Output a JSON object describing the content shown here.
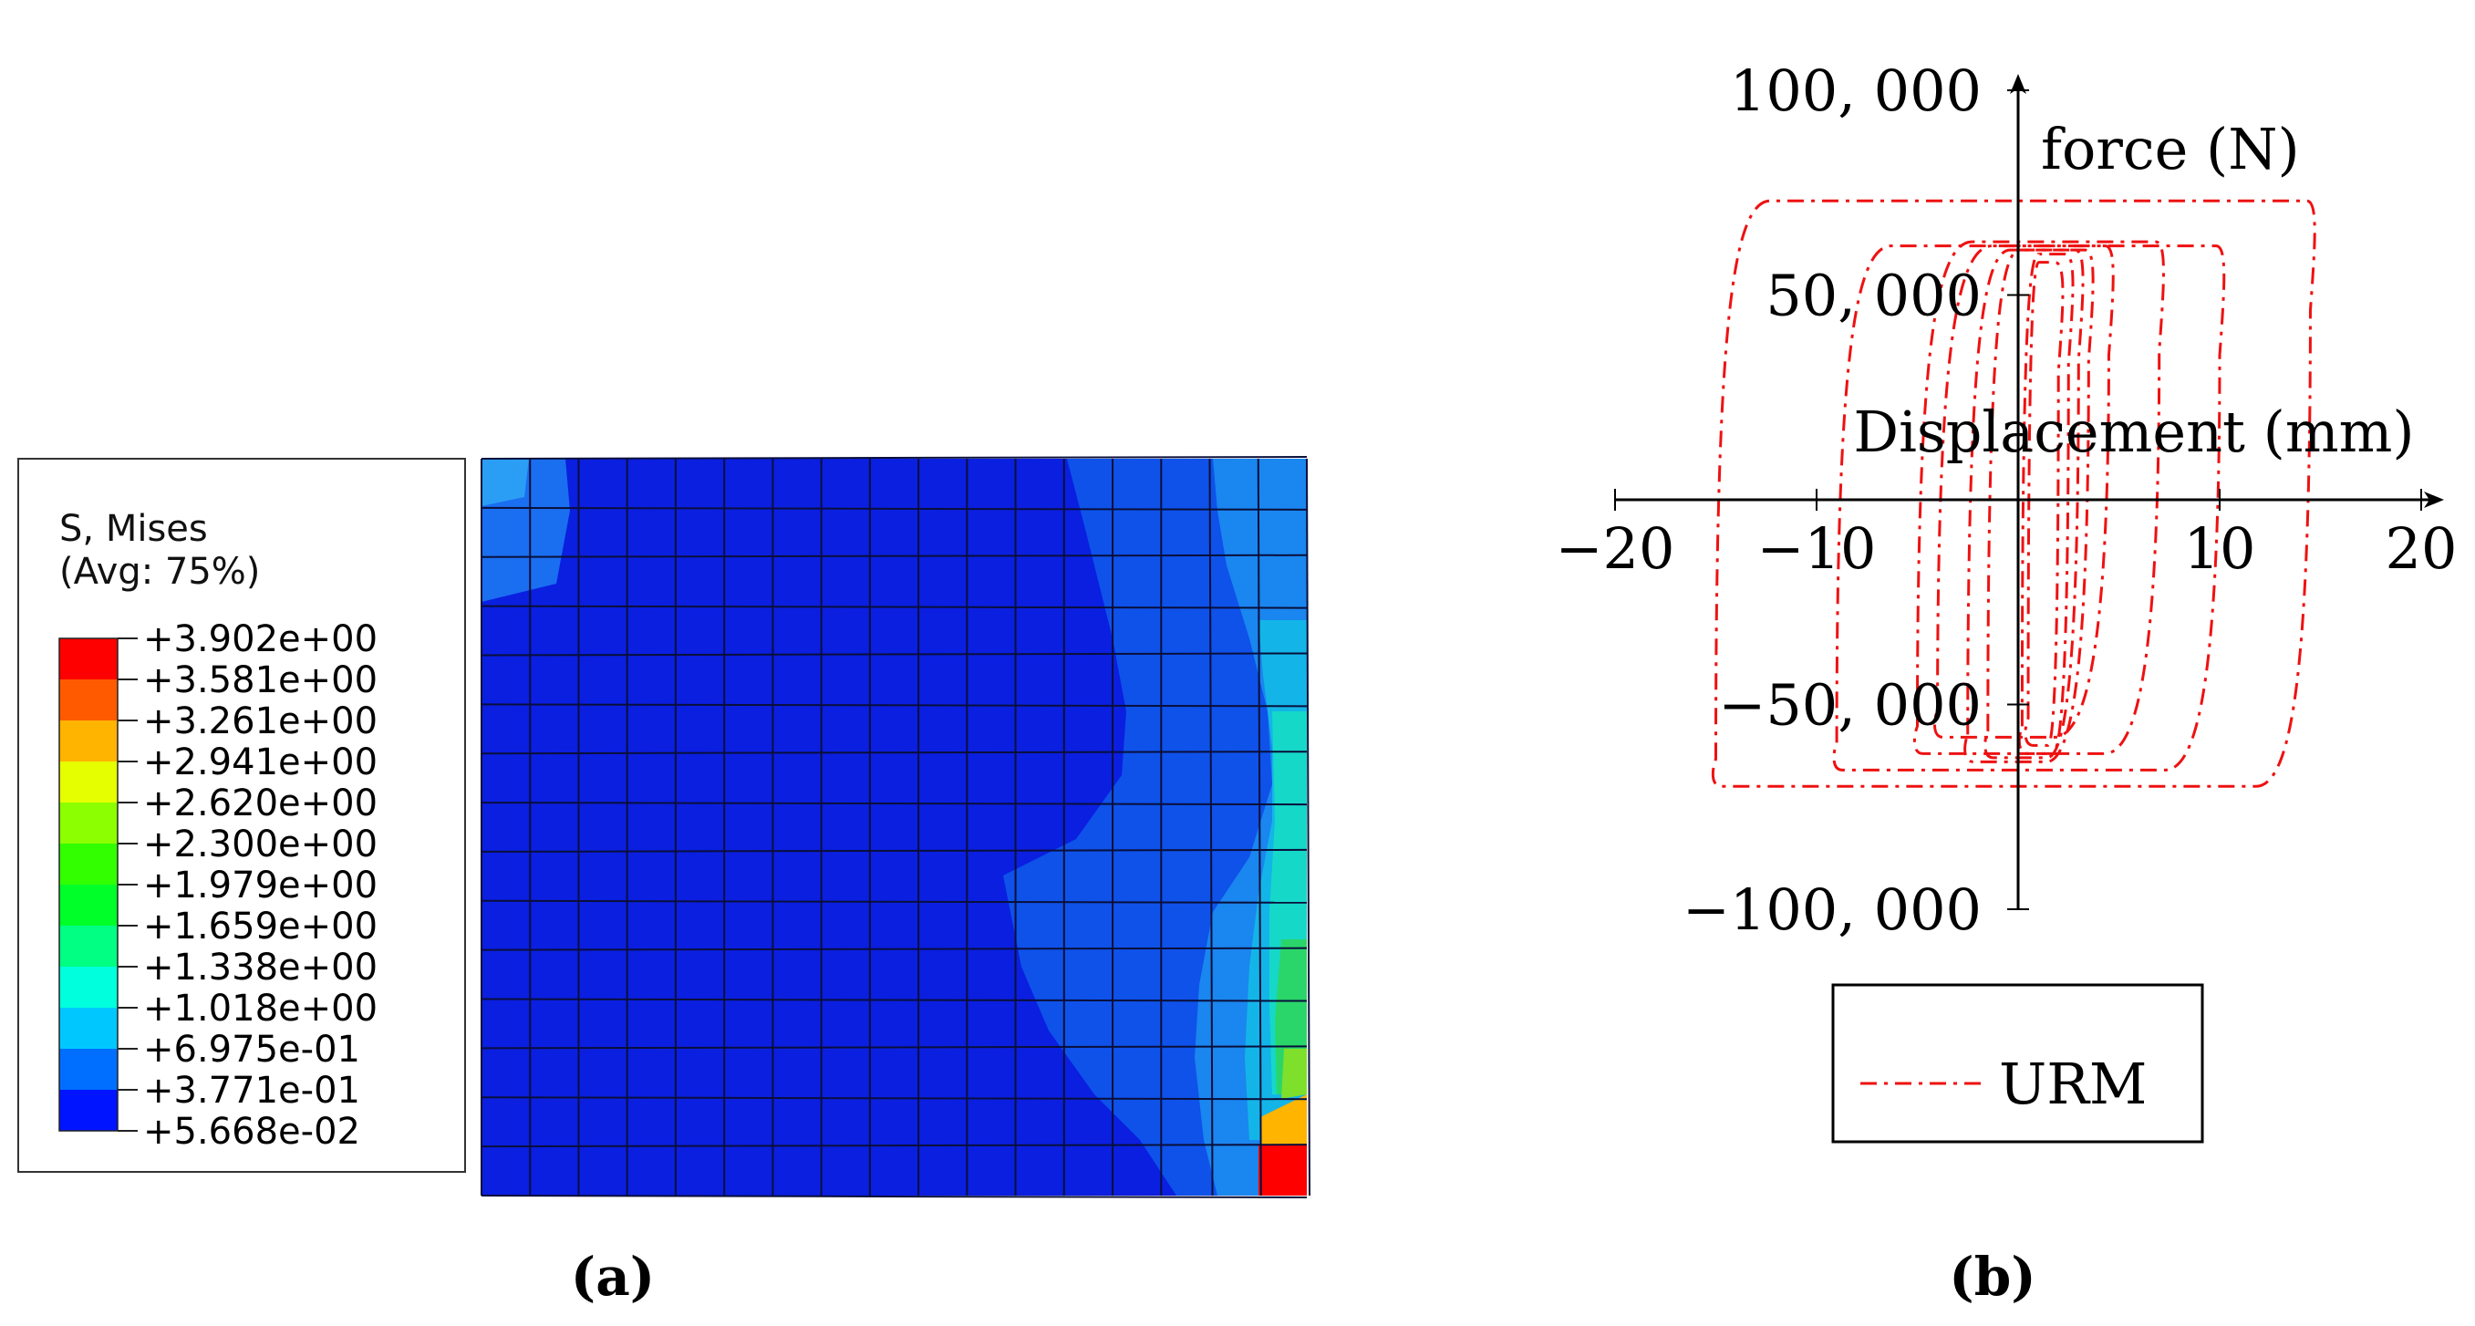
{
  "panel_a": {
    "caption": "(a)",
    "legend": {
      "title_line1": "S, Mises",
      "title_line2": "(Avg: 75%)",
      "levels": [
        "+3.902e+00",
        "+3.581e+00",
        "+3.261e+00",
        "+2.941e+00",
        "+2.620e+00",
        "+2.300e+00",
        "+1.979e+00",
        "+1.659e+00",
        "+1.338e+00",
        "+1.018e+00",
        "+6.975e-01",
        "+3.771e-01",
        "+5.668e-02"
      ],
      "colors": [
        "#ff0000",
        "#ff5a00",
        "#ffb400",
        "#e6ff00",
        "#8cff00",
        "#32ff00",
        "#00ff28",
        "#00ff82",
        "#00ffdc",
        "#00c8ff",
        "#006eff",
        "#0014ff"
      ]
    },
    "mesh": {
      "columns": 17,
      "rows": 15,
      "base_color": "#0a1fe0",
      "grid_color": "#0a0f3a"
    }
  },
  "panel_b": {
    "caption": "(b)",
    "chart_data": {
      "type": "line",
      "xlabel": "Displacement (mm)",
      "ylabel": "force (N)",
      "xlim": [
        -20,
        20
      ],
      "ylim": [
        -100000,
        100000
      ],
      "x_ticks": [
        -20,
        -10,
        10,
        20
      ],
      "x_tick_labels": [
        "−20",
        "−10",
        "10",
        "20"
      ],
      "y_ticks": [
        100000,
        50000,
        -50000,
        -100000
      ],
      "y_tick_labels": [
        "100, 000",
        "50, 000",
        "−50, 000",
        "−100, 000"
      ],
      "grid": false,
      "legend_position": "bottom",
      "series_color": "#ee1111",
      "series": [
        {
          "name": "URM",
          "loops": [
            {
              "xmin": 0.5,
              "xmax": 2.0,
              "ymin": -60000,
              "ymax": 58000
            },
            {
              "xmin": 0.2,
              "xmax": 2.5,
              "ymin": -62000,
              "ymax": 60000
            },
            {
              "xmin": -1.5,
              "xmax": 3.0,
              "ymin": -63000,
              "ymax": 61000
            },
            {
              "xmin": -2.5,
              "xmax": 3.5,
              "ymin": -64000,
              "ymax": 61000
            },
            {
              "xmin": -4.0,
              "xmax": 4.5,
              "ymin": -58000,
              "ymax": 62000
            },
            {
              "xmin": -5.0,
              "xmax": 7.0,
              "ymin": -62000,
              "ymax": 63000
            },
            {
              "xmin": -9.0,
              "xmax": 10.0,
              "ymin": -66000,
              "ymax": 62000
            },
            {
              "xmin": -15.0,
              "xmax": 14.5,
              "ymin": -70000,
              "ymax": 73000
            }
          ]
        }
      ]
    }
  }
}
